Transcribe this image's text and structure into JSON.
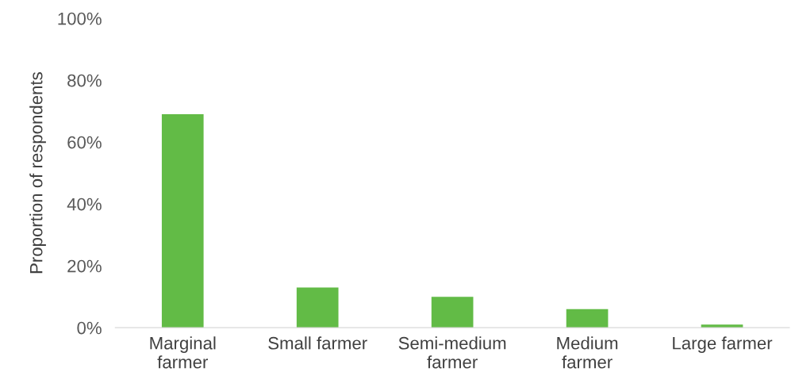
{
  "chart_data": {
    "type": "bar",
    "ylabel": "Proportion of respondents",
    "categories": [
      "Marginal\nfarmer",
      "Small farmer",
      "Semi-medium\nfarmer",
      "Medium\nfarmer",
      "Large farmer"
    ],
    "values": [
      69,
      13,
      10,
      6,
      1
    ],
    "color": "#62bb46",
    "ylim": [
      0,
      100
    ],
    "yticks": [
      {
        "value": 0,
        "label": "0%"
      },
      {
        "value": 20,
        "label": "20%"
      },
      {
        "value": 40,
        "label": "40%"
      },
      {
        "value": 60,
        "label": "60%"
      },
      {
        "value": 80,
        "label": "80%"
      },
      {
        "value": 100,
        "label": "100%"
      }
    ],
    "grid": false,
    "legend": false
  }
}
